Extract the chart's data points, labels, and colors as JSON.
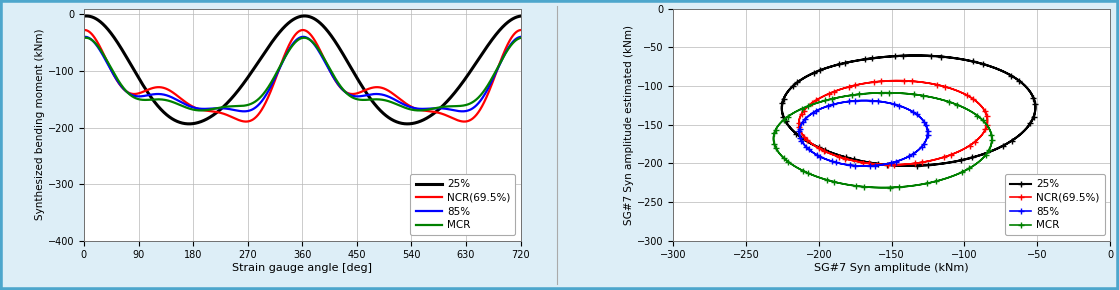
{
  "chart1": {
    "xlabel": "Strain gauge angle [deg]",
    "ylabel": "Synthesized bending moment (kNm)",
    "xlim": [
      0,
      720
    ],
    "ylim": [
      -400,
      10
    ],
    "xticks": [
      0,
      90,
      180,
      270,
      360,
      450,
      540,
      630,
      720
    ],
    "yticks": [
      0,
      -100,
      -200,
      -300,
      -400
    ]
  },
  "chart2": {
    "xlabel": "SG#7 Syn amplitude (kNm)",
    "ylabel": "SG#7 Syn amplitude estimated (kNm)",
    "xlim": [
      -300,
      0
    ],
    "ylim": [
      -300,
      0
    ],
    "xticks": [
      -300,
      -250,
      -200,
      -150,
      -100,
      -50,
      0
    ],
    "yticks": [
      0,
      -50,
      -100,
      -150,
      -200,
      -250,
      -300
    ]
  },
  "colors": {
    "25%": "#000000",
    "NCR(69.5%)": "#ff0000",
    "85%": "#0000ff",
    "MCR": "#008000"
  },
  "legend_labels": [
    "25%",
    "NCR(69.5%)",
    "85%",
    "MCR"
  ],
  "background_color": "#ddeef7",
  "plot_bg_color": "#ffffff",
  "border_color": "#4da6cc"
}
